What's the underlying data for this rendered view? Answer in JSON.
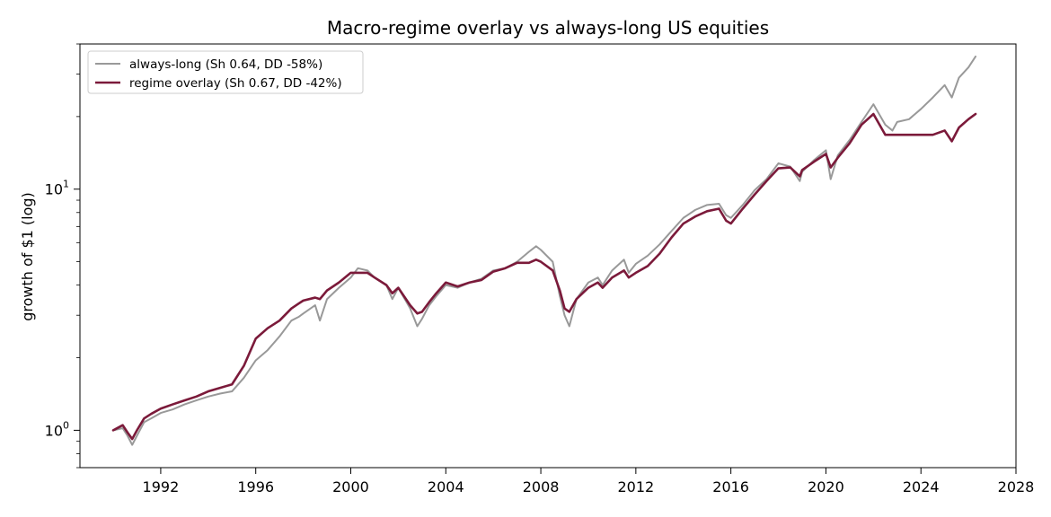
{
  "chart_data": {
    "type": "line",
    "title": "Macro-regime overlay vs always-long US equities",
    "xlabel": "",
    "ylabel": "growth of $1 (log)",
    "yscale": "log",
    "xlim": [
      1988.6,
      2028.0
    ],
    "ylim": [
      0.7,
      40
    ],
    "x_ticks": [
      1992,
      1996,
      2000,
      2004,
      2008,
      2012,
      2016,
      2020,
      2024,
      2028
    ],
    "y_ticks": [
      {
        "value": 1,
        "label": "10^0"
      },
      {
        "value": 10,
        "label": "10^1"
      }
    ],
    "grid": false,
    "legend_position": "top-left",
    "series": [
      {
        "name": "always-long (Sh 0.64, DD -58%)",
        "color": "#999999",
        "x": [
          1990.0,
          1990.4,
          1990.6,
          1990.8,
          1991.0,
          1991.3,
          1991.6,
          1992.0,
          1992.5,
          1993.0,
          1993.5,
          1994.0,
          1994.5,
          1995.0,
          1995.5,
          1996.0,
          1996.5,
          1997.0,
          1997.5,
          1997.8,
          1998.0,
          1998.5,
          1998.7,
          1999.0,
          1999.5,
          2000.0,
          2000.3,
          2000.7,
          2001.0,
          2001.5,
          2001.75,
          2002.0,
          2002.5,
          2002.8,
          2003.0,
          2003.3,
          2003.6,
          2004.0,
          2004.5,
          2005.0,
          2005.5,
          2006.0,
          2006.5,
          2007.0,
          2007.5,
          2007.8,
          2008.0,
          2008.5,
          2008.8,
          2009.0,
          2009.2,
          2009.5,
          2010.0,
          2010.4,
          2010.6,
          2011.0,
          2011.5,
          2011.7,
          2012.0,
          2012.5,
          2013.0,
          2013.5,
          2014.0,
          2014.5,
          2015.0,
          2015.5,
          2015.8,
          2016.0,
          2016.5,
          2017.0,
          2017.5,
          2018.0,
          2018.5,
          2018.9,
          2019.0,
          2019.5,
          2020.0,
          2020.2,
          2020.5,
          2021.0,
          2021.5,
          2022.0,
          2022.5,
          2022.8,
          2023.0,
          2023.5,
          2024.0,
          2024.5,
          2025.0,
          2025.3,
          2025.6,
          2026.0,
          2026.3
        ],
        "values": [
          1.0,
          1.02,
          0.95,
          0.87,
          0.95,
          1.08,
          1.12,
          1.18,
          1.22,
          1.28,
          1.33,
          1.38,
          1.42,
          1.45,
          1.65,
          1.95,
          2.15,
          2.45,
          2.85,
          2.95,
          3.05,
          3.3,
          2.85,
          3.5,
          3.9,
          4.3,
          4.7,
          4.6,
          4.3,
          4.0,
          3.5,
          3.9,
          3.2,
          2.7,
          2.9,
          3.3,
          3.6,
          4.0,
          3.9,
          4.1,
          4.25,
          4.6,
          4.7,
          5.0,
          5.5,
          5.8,
          5.6,
          5.0,
          3.6,
          3.0,
          2.7,
          3.5,
          4.1,
          4.3,
          4.0,
          4.6,
          5.1,
          4.5,
          4.9,
          5.3,
          5.9,
          6.7,
          7.6,
          8.2,
          8.6,
          8.7,
          7.8,
          7.6,
          8.6,
          9.9,
          11.0,
          12.8,
          12.4,
          10.8,
          11.8,
          13.2,
          14.5,
          11.0,
          13.8,
          16.0,
          19.0,
          22.5,
          18.5,
          17.5,
          19.0,
          19.5,
          21.5,
          24.0,
          27.0,
          24.0,
          29.0,
          32.0,
          35.5
        ]
      },
      {
        "name": "regime overlay (Sh 0.67, DD -42%)",
        "color": "#7B1A3A",
        "x": [
          1990.0,
          1990.4,
          1990.6,
          1990.8,
          1991.0,
          1991.3,
          1991.6,
          1992.0,
          1992.5,
          1993.0,
          1993.5,
          1994.0,
          1994.5,
          1995.0,
          1995.5,
          1996.0,
          1996.5,
          1997.0,
          1997.5,
          1997.8,
          1998.0,
          1998.5,
          1998.7,
          1999.0,
          1999.5,
          2000.0,
          2000.3,
          2000.7,
          2001.0,
          2001.5,
          2001.75,
          2002.0,
          2002.5,
          2002.8,
          2003.0,
          2003.3,
          2003.6,
          2004.0,
          2004.5,
          2005.0,
          2005.5,
          2006.0,
          2006.5,
          2007.0,
          2007.5,
          2007.8,
          2008.0,
          2008.5,
          2008.8,
          2009.0,
          2009.2,
          2009.5,
          2010.0,
          2010.4,
          2010.6,
          2011.0,
          2011.5,
          2011.7,
          2012.0,
          2012.5,
          2013.0,
          2013.5,
          2014.0,
          2014.5,
          2015.0,
          2015.5,
          2015.8,
          2016.0,
          2016.5,
          2017.0,
          2017.5,
          2018.0,
          2018.5,
          2018.9,
          2019.0,
          2019.5,
          2020.0,
          2020.2,
          2020.5,
          2021.0,
          2021.5,
          2022.0,
          2022.5,
          2022.8,
          2023.0,
          2023.5,
          2024.0,
          2024.5,
          2025.0,
          2025.3,
          2025.6,
          2026.0,
          2026.3
        ],
        "values": [
          1.0,
          1.05,
          0.98,
          0.92,
          1.0,
          1.12,
          1.17,
          1.23,
          1.28,
          1.33,
          1.38,
          1.45,
          1.5,
          1.55,
          1.85,
          2.4,
          2.65,
          2.85,
          3.2,
          3.35,
          3.45,
          3.55,
          3.5,
          3.8,
          4.1,
          4.5,
          4.5,
          4.5,
          4.3,
          4.0,
          3.7,
          3.9,
          3.3,
          3.05,
          3.1,
          3.4,
          3.7,
          4.1,
          3.95,
          4.1,
          4.2,
          4.55,
          4.7,
          4.95,
          4.95,
          5.1,
          5.0,
          4.6,
          3.8,
          3.2,
          3.1,
          3.5,
          3.9,
          4.1,
          3.9,
          4.3,
          4.6,
          4.3,
          4.5,
          4.8,
          5.4,
          6.3,
          7.2,
          7.7,
          8.1,
          8.3,
          7.4,
          7.2,
          8.3,
          9.5,
          10.8,
          12.2,
          12.3,
          11.3,
          12.0,
          13.0,
          14.0,
          12.3,
          13.5,
          15.5,
          18.5,
          20.5,
          16.8,
          16.8,
          16.8,
          16.8,
          16.8,
          16.8,
          17.5,
          15.8,
          18.0,
          19.5,
          20.5
        ]
      }
    ]
  }
}
